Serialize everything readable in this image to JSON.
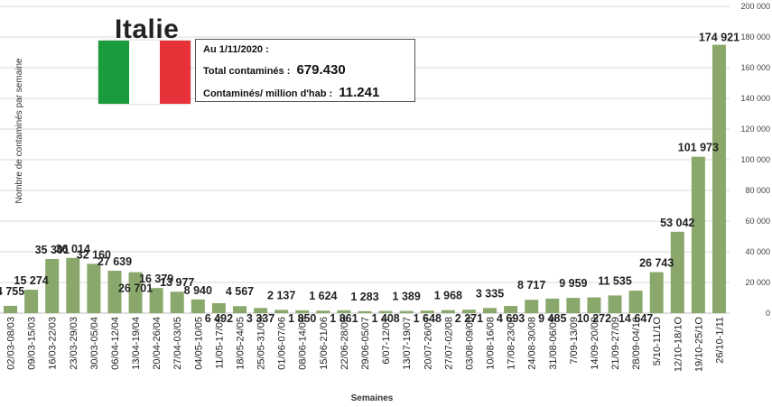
{
  "country": "Italie",
  "flag_colors": [
    "#1a9b3c",
    "#ffffff",
    "#e8323a"
  ],
  "info": {
    "date": "Au 1/11/2020 :",
    "total_label": "Total contaminés :",
    "total_value": "679.430",
    "permillion_label": "Contaminés/ million d'hab :",
    "permillion_value": "11.241"
  },
  "chart_data": {
    "type": "bar",
    "xlabel": "Semaines",
    "ylabel": "Nombre de contaminés par semaine",
    "ylim": [
      0,
      200000
    ],
    "yticks": [
      "0",
      "20 000",
      "40 000",
      "60 000",
      "80 000",
      "100 000",
      "120 000",
      "140 000",
      "160 000",
      "180 000",
      "200 000"
    ],
    "bar_color": "#8aa86b",
    "grid": true,
    "categories": [
      "02/03-08/03",
      "09/03-15/03",
      "16/03-22/03",
      "23/03-29/03",
      "30/03-05/04",
      "06/04-12/04",
      "13/04-19/04",
      "20/04-26/04",
      "27/04-03/05",
      "04/05-10/05",
      "11/05-17/05",
      "18/05-24/05",
      "25/05-31/05",
      "01/06-07/06",
      "08/06-14/06",
      "15/06-21/06",
      "22/06-28/06",
      "29/06-05/07",
      "6/07-12/07",
      "13/07-19/07",
      "20/07-26/07",
      "27/07-02/08",
      "03/08-09/08",
      "10/08-16/08",
      "17/08-23/08",
      "24/08-30/08",
      "31/08-06/09",
      "7/09-13/09",
      "14/09-20/09",
      "21/09-27/09",
      "28/09-04/10",
      "5/10-11/1O",
      "12/10-18/1O",
      "19/10-25/1O",
      "26/10-1/11"
    ],
    "values": [
      4755,
      15274,
      35301,
      36014,
      32160,
      27639,
      26701,
      16379,
      13977,
      8940,
      6492,
      4567,
      3337,
      2137,
      1850,
      1624,
      1861,
      1283,
      1408,
      1389,
      1648,
      1968,
      2271,
      3335,
      4693,
      8717,
      9485,
      9959,
      10272,
      11535,
      14647,
      26743,
      53042,
      101973,
      174921
    ],
    "value_labels": [
      "4 755",
      "15 274",
      "35 301",
      "36 014",
      "32 160",
      "27 639",
      "26 701",
      "16 379",
      "13 977",
      "8 940",
      "6 492",
      "4 567",
      "3 337",
      "2 137",
      "1 850",
      "1 624",
      "1 861",
      "1 283",
      "1 408",
      "1 389",
      "1 648",
      "1 968",
      "2 271",
      "3 335",
      "4 693",
      "8 717",
      "9 485",
      "9 959",
      "10 272",
      "11 535",
      "14 647",
      "26 743",
      "53 042",
      "101 973",
      "174 921"
    ]
  }
}
